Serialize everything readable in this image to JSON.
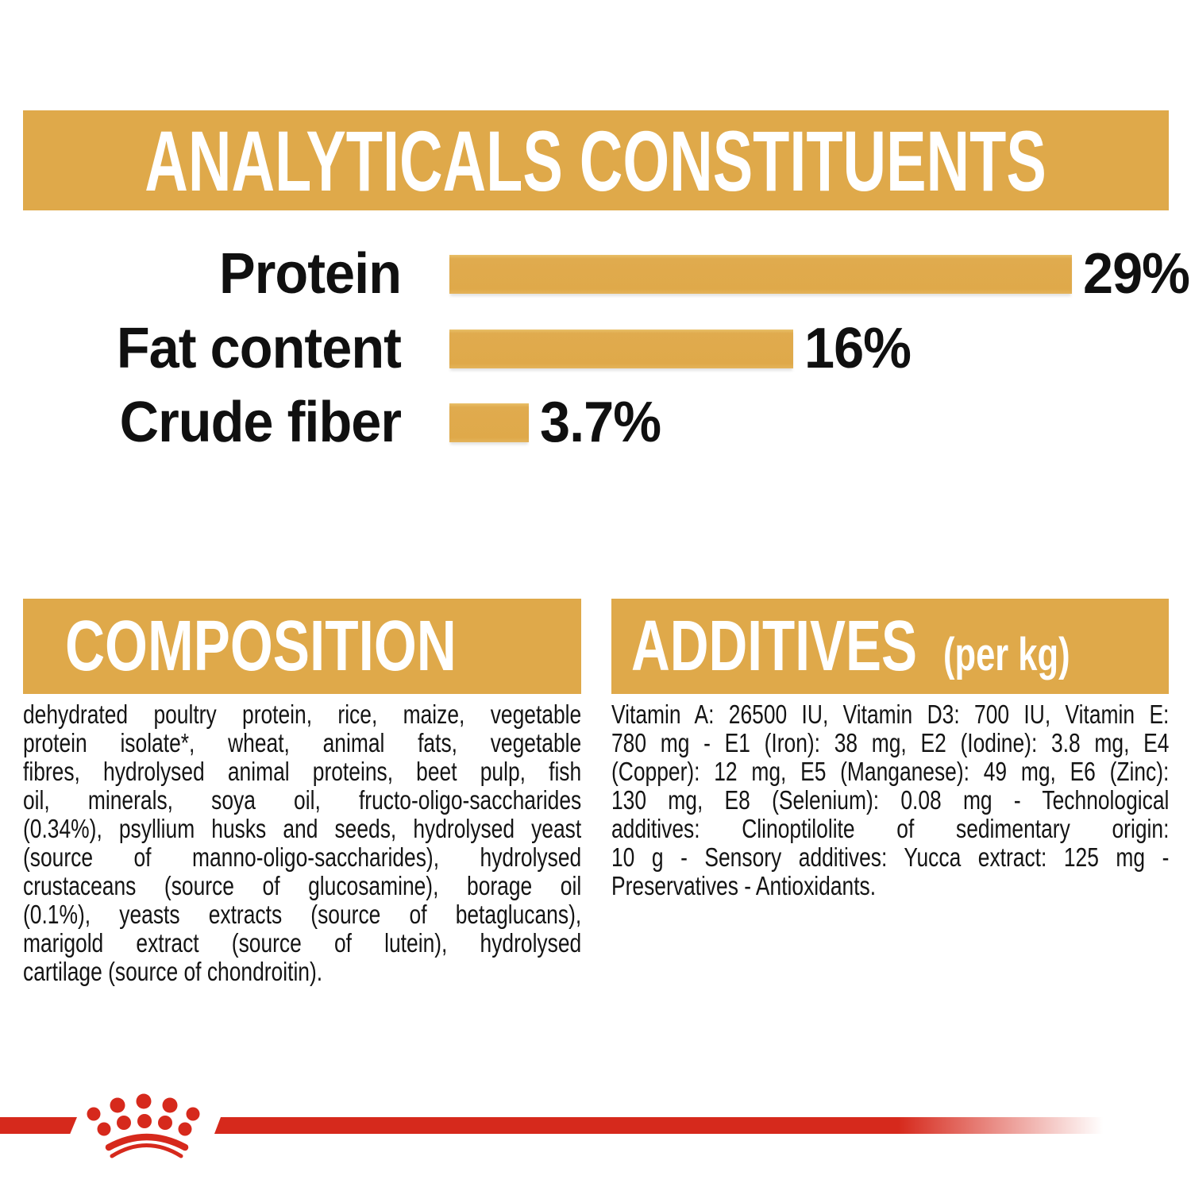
{
  "colors": {
    "gold": "#DFA94A",
    "red": "#D6291C",
    "banner_text": "#FFFFFF",
    "body_text": "#141414"
  },
  "header": {
    "title": "ANALYTICALS CONSTITUENTS"
  },
  "chart_data": {
    "type": "bar",
    "orientation": "horizontal",
    "title": "ANALYTICALS CONSTITUENTS",
    "categories": [
      "Protein",
      "Fat content",
      "Crude fiber"
    ],
    "values": [
      29,
      16,
      3.7
    ],
    "value_labels": [
      "29%",
      "16%",
      "3.7%"
    ],
    "xlim": [
      0,
      29
    ],
    "bar_color": "#DFA94A",
    "grid": false,
    "legend": false
  },
  "composition": {
    "heading": "COMPOSITION",
    "body_lines": [
      "dehydrated poultry protein, rice, maize, vegetable",
      "protein isolate*, wheat, animal fats, vegetable",
      "fibres, hydrolysed animal proteins, beet pulp, fish",
      "oil, minerals, soya oil, fructo-oligo-saccharides",
      "(0.34%), psyllium husks and seeds, hydrolysed yeast",
      "(source of manno-oligo-saccharides), hydrolysed",
      "crustaceans (source of glucosamine), borage oil",
      "(0.1%), yeasts extracts (source of betaglucans),",
      "marigold extract (source of lutein), hydrolysed",
      "cartilage (source of chondroitin)."
    ]
  },
  "additives": {
    "heading": "ADDITIVES",
    "heading_note": "(per kg)",
    "body_lines": [
      "Vitamin A: 26500 IU, Vitamin D3: 700 IU, Vitamin E:",
      "780 mg - E1 (Iron): 38 mg, E2 (Iodine): 3.8 mg, E4",
      "(Copper): 12 mg, E5 (Manganese): 49 mg, E6 (Zinc):",
      "130 mg, E8 (Selenium): 0.08 mg - Technological",
      "additives: Clinoptilolite of sedimentary origin:",
      "10 g - Sensory additives: Yucca extract: 125 mg -",
      "Preservatives - Antioxidants."
    ]
  },
  "footer": {
    "brand_mark": "royal-canin-crown"
  }
}
